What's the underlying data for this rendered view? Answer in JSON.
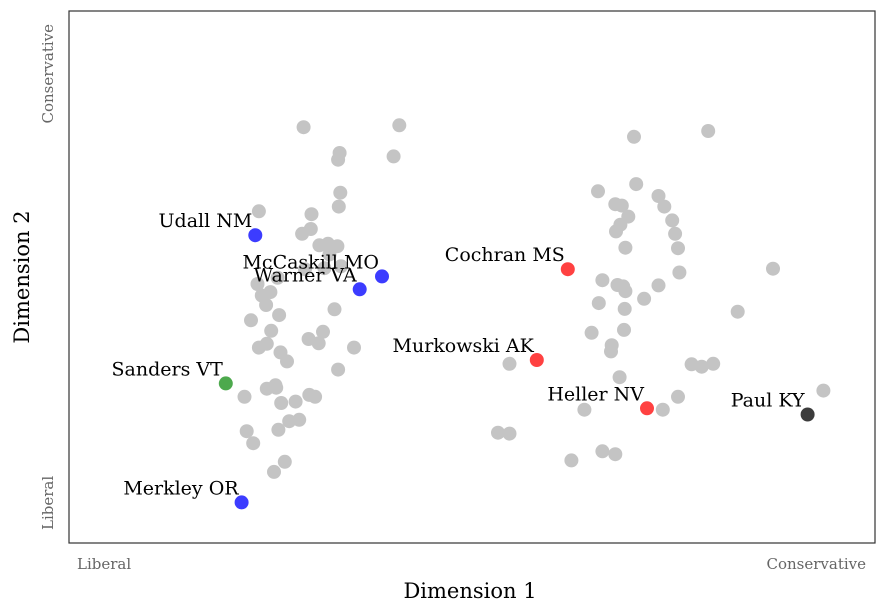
{
  "chart_data": {
    "type": "scatter",
    "title": "",
    "xlabel": "Dimension 1",
    "ylabel": "Dimension 2",
    "xlim": [
      0,
      1
    ],
    "ylim": [
      0,
      1
    ],
    "x_tick_labels": {
      "low": "Liberal",
      "high": "Conservative"
    },
    "y_tick_labels": {
      "low": "Liberal",
      "high": "Conservative"
    },
    "grid": false,
    "background_points_color": "#c4c4c4",
    "background_points": [
      [
        0.298,
        0.828
      ],
      [
        0.431,
        0.832
      ],
      [
        0.346,
        0.76
      ],
      [
        0.348,
        0.774
      ],
      [
        0.423,
        0.767
      ],
      [
        0.757,
        0.808
      ],
      [
        0.86,
        0.82
      ],
      [
        0.236,
        0.652
      ],
      [
        0.309,
        0.646
      ],
      [
        0.349,
        0.691
      ],
      [
        0.347,
        0.662
      ],
      [
        0.308,
        0.615
      ],
      [
        0.296,
        0.605
      ],
      [
        0.32,
        0.581
      ],
      [
        0.345,
        0.579
      ],
      [
        0.332,
        0.584
      ],
      [
        0.334,
        0.562
      ],
      [
        0.35,
        0.537
      ],
      [
        0.3,
        0.531
      ],
      [
        0.327,
        0.533
      ],
      [
        0.262,
        0.513
      ],
      [
        0.234,
        0.5
      ],
      [
        0.252,
        0.483
      ],
      [
        0.24,
        0.476
      ],
      [
        0.246,
        0.456
      ],
      [
        0.264,
        0.435
      ],
      [
        0.225,
        0.424
      ],
      [
        0.253,
        0.402
      ],
      [
        0.325,
        0.4
      ],
      [
        0.341,
        0.447
      ],
      [
        0.305,
        0.385
      ],
      [
        0.319,
        0.376
      ],
      [
        0.368,
        0.367
      ],
      [
        0.247,
        0.375
      ],
      [
        0.236,
        0.367
      ],
      [
        0.275,
        0.338
      ],
      [
        0.266,
        0.357
      ],
      [
        0.346,
        0.321
      ],
      [
        0.259,
        0.288
      ],
      [
        0.247,
        0.281
      ],
      [
        0.216,
        0.264
      ],
      [
        0.287,
        0.254
      ],
      [
        0.306,
        0.268
      ],
      [
        0.267,
        0.251
      ],
      [
        0.219,
        0.192
      ],
      [
        0.26,
        0.283
      ],
      [
        0.278,
        0.213
      ],
      [
        0.292,
        0.216
      ],
      [
        0.314,
        0.264
      ],
      [
        0.263,
        0.195
      ],
      [
        0.272,
        0.128
      ],
      [
        0.257,
        0.107
      ],
      [
        0.228,
        0.167
      ],
      [
        0.707,
        0.694
      ],
      [
        0.76,
        0.709
      ],
      [
        0.731,
        0.667
      ],
      [
        0.74,
        0.664
      ],
      [
        0.749,
        0.641
      ],
      [
        0.738,
        0.624
      ],
      [
        0.732,
        0.61
      ],
      [
        0.791,
        0.684
      ],
      [
        0.799,
        0.662
      ],
      [
        0.81,
        0.633
      ],
      [
        0.814,
        0.605
      ],
      [
        0.818,
        0.575
      ],
      [
        0.745,
        0.576
      ],
      [
        0.82,
        0.524
      ],
      [
        0.713,
        0.508
      ],
      [
        0.734,
        0.498
      ],
      [
        0.742,
        0.495
      ],
      [
        0.745,
        0.485
      ],
      [
        0.791,
        0.497
      ],
      [
        0.771,
        0.469
      ],
      [
        0.708,
        0.46
      ],
      [
        0.744,
        0.448
      ],
      [
        0.698,
        0.398
      ],
      [
        0.743,
        0.404
      ],
      [
        0.726,
        0.372
      ],
      [
        0.725,
        0.359
      ],
      [
        0.901,
        0.442
      ],
      [
        0.95,
        0.532
      ],
      [
        0.837,
        0.332
      ],
      [
        0.851,
        0.327
      ],
      [
        0.867,
        0.333
      ],
      [
        0.737,
        0.305
      ],
      [
        0.584,
        0.333
      ],
      [
        0.818,
        0.264
      ],
      [
        0.797,
        0.237
      ],
      [
        0.688,
        0.237
      ],
      [
        0.568,
        0.189
      ],
      [
        0.584,
        0.187
      ],
      [
        0.713,
        0.15
      ],
      [
        0.731,
        0.144
      ],
      [
        0.67,
        0.131
      ],
      [
        1.02,
        0.277
      ]
    ],
    "highlighted_points": [
      {
        "label": "Udall NM",
        "x": 0.231,
        "y": 0.602,
        "color": "#1a1aff"
      },
      {
        "label": "McCaskill MO",
        "x": 0.407,
        "y": 0.516,
        "color": "#1a1aff"
      },
      {
        "label": "Warner VA",
        "x": 0.376,
        "y": 0.489,
        "color": "#1a1aff"
      },
      {
        "label": "Cochran MS",
        "x": 0.665,
        "y": 0.531,
        "color": "#ff2020"
      },
      {
        "label": "Murkowski AK",
        "x": 0.622,
        "y": 0.341,
        "color": "#ff2020"
      },
      {
        "label": "Sanders VT",
        "x": 0.19,
        "y": 0.292,
        "color": "#2e9a2e"
      },
      {
        "label": "Heller NV",
        "x": 0.775,
        "y": 0.24,
        "color": "#ff2020"
      },
      {
        "label": "Paul KY",
        "x": 0.998,
        "y": 0.227,
        "color": "#1a1a1a"
      },
      {
        "label": "Merkley OR",
        "x": 0.212,
        "y": 0.043,
        "color": "#1a1aff"
      }
    ]
  }
}
